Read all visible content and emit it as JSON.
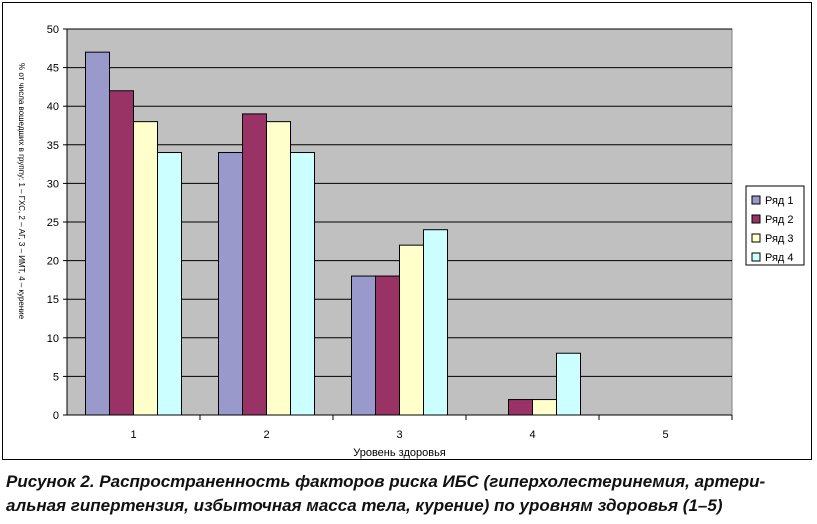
{
  "chart_data": {
    "type": "bar",
    "categories": [
      "1",
      "2",
      "3",
      "4",
      "5"
    ],
    "series": [
      {
        "name": "Ряд 1",
        "values": [
          47,
          34,
          18,
          0,
          0
        ],
        "color": "#9999cc"
      },
      {
        "name": "Ряд 2",
        "values": [
          42,
          39,
          18,
          2,
          0
        ],
        "color": "#993366"
      },
      {
        "name": "Ряд 3",
        "values": [
          38,
          38,
          22,
          2,
          0
        ],
        "color": "#ffffcc"
      },
      {
        "name": "Ряд 4",
        "values": [
          34,
          34,
          24,
          8,
          0
        ],
        "color": "#ccffff"
      }
    ],
    "xlabel": "Уровень здоровья",
    "ylabel": "% от числа вошедших в группу: 1 – ГХС, 2 – АГ, 3 – ИМТ, 4 – курение",
    "ylim": [
      0,
      50
    ],
    "yticks": [
      0,
      5,
      10,
      15,
      20,
      25,
      30,
      35,
      40,
      45,
      50
    ],
    "grid": true,
    "legend": "right",
    "plot_background": "#c0c0c0"
  },
  "caption": {
    "line1": "Рисунок 2. Распространенность факторов риска ИБС (гиперхолестеринемия, артери-",
    "line2": "альная гипертензия, избыточная масса тела, курение) по уровням здоровья (1–5)"
  }
}
